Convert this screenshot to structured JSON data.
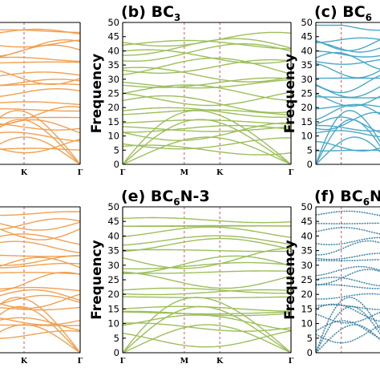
{
  "figure": {
    "background": "#ffffff"
  },
  "chart_data": [
    {
      "id": "a",
      "panel": "a",
      "type": "line",
      "title": "",
      "title_main": "",
      "title_sub": "",
      "title_tail": "",
      "color": "#f0a050",
      "style": "solid",
      "ylabel": "",
      "ylim": [
        0,
        50
      ],
      "yticks": [],
      "x_ticks": [
        "K",
        "Γ"
      ],
      "x_positions": [
        0.5,
        1.0
      ],
      "series_hint": "dense phonon branches 0-48"
    },
    {
      "id": "b",
      "panel": "b",
      "type": "line",
      "title": "(b) BC3",
      "title_main": "(b) BC",
      "title_sub": "3",
      "title_tail": "",
      "color": "#9cbf5a",
      "style": "solid",
      "ylabel": "Frequency",
      "ylim": [
        0,
        50
      ],
      "yticks": [
        0,
        5,
        10,
        15,
        20,
        25,
        30,
        35,
        40,
        45,
        50
      ],
      "x_ticks": [
        "Γ",
        "M",
        "K",
        "Γ"
      ],
      "x_positions": [
        0,
        0.366,
        0.577,
        1.0
      ],
      "series_hint": "phonon branches 0-45"
    },
    {
      "id": "c",
      "panel": "c",
      "type": "line",
      "title": "(c) BC6",
      "title_main": "(c) BC",
      "title_sub": "6",
      "title_tail": "",
      "color": "#4aa8c8",
      "style": "solid",
      "ylabel": "Frequency",
      "ylim": [
        0,
        50
      ],
      "yticks": [
        0,
        5,
        10,
        15,
        20,
        25,
        30,
        35,
        40,
        45,
        50
      ],
      "x_ticks": [],
      "x_positions": [],
      "series_hint": "phonon branches 0-47"
    },
    {
      "id": "d",
      "panel": "d",
      "type": "line",
      "title": "",
      "title_main": "",
      "title_sub": "",
      "title_tail": "",
      "color": "#f0a050",
      "style": "solid",
      "ylabel": "",
      "ylim": [
        0,
        50
      ],
      "yticks": [],
      "x_ticks": [
        "K",
        "Γ"
      ],
      "x_positions": [
        0.5,
        1.0
      ],
      "series_hint": "dense phonon branches 0-48"
    },
    {
      "id": "e",
      "panel": "e",
      "type": "line",
      "title": "(e) BC6N-3",
      "title_main": "(e) BC",
      "title_sub": "6",
      "title_tail": "N-3",
      "color": "#9cbf5a",
      "style": "solid",
      "ylabel": "Frequency",
      "ylim": [
        0,
        50
      ],
      "yticks": [
        0,
        5,
        10,
        15,
        20,
        25,
        30,
        35,
        40,
        45,
        50
      ],
      "x_ticks": [
        "Γ",
        "M",
        "K",
        "Γ"
      ],
      "x_positions": [
        0,
        0.366,
        0.577,
        1.0
      ],
      "series_hint": "phonon branches 0-47"
    },
    {
      "id": "f",
      "panel": "f",
      "type": "line",
      "title": "(f) BC6N",
      "title_main": "(f) BC",
      "title_sub": "6",
      "title_tail": "N",
      "color": "#4aa8c8",
      "style": "dotted",
      "ylabel": "Frequency",
      "ylim": [
        0,
        50
      ],
      "yticks": [
        0,
        5,
        10,
        15,
        20,
        25,
        30,
        35,
        40,
        45,
        50
      ],
      "x_ticks": [],
      "x_positions": [],
      "series_hint": "phonon branches 0-45 dotted"
    }
  ]
}
